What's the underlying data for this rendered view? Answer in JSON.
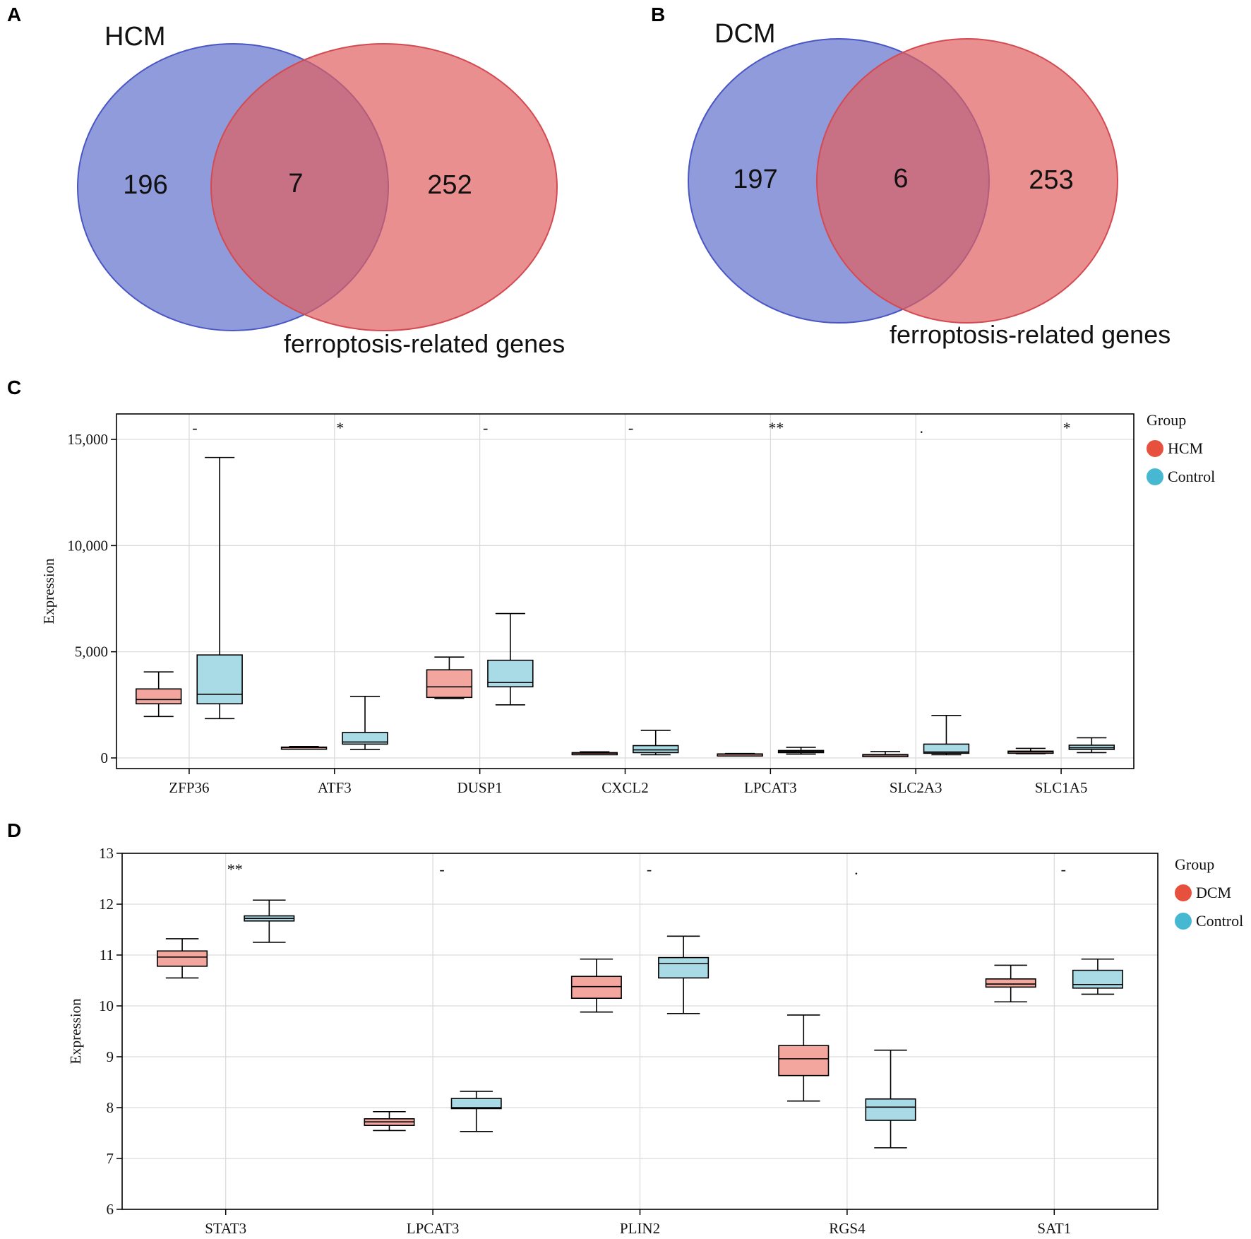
{
  "colors": {
    "venn_left": "#6f7fcf",
    "venn_left_stroke": "#4a56c4",
    "venn_right": "#e06060",
    "venn_right_stroke": "#d44a52",
    "box_disease": "#f2a69e",
    "box_control": "#a8dbe6",
    "legend_disease": "#e8503e",
    "legend_control": "#47b8d1",
    "grid": "#d9d9d9"
  },
  "panels": {
    "a": {
      "letter": "A"
    },
    "b": {
      "letter": "B"
    },
    "c": {
      "letter": "C"
    },
    "d": {
      "letter": "D"
    }
  },
  "venn_a": {
    "set_left": "HCM",
    "set_right": "ferroptosis-related genes",
    "left_only": "196",
    "overlap": "7",
    "right_only": "252"
  },
  "venn_b": {
    "set_left": "DCM",
    "set_right": "ferroptosis-related genes",
    "left_only": "197",
    "overlap": "6",
    "right_only": "253"
  },
  "chart_data": [
    {
      "panel": "C",
      "type": "boxplot",
      "ylabel": "Expression",
      "ylim": [
        -500,
        16200
      ],
      "yticks": [
        0,
        5000,
        10000,
        15000
      ],
      "ytick_labels": [
        "0",
        "5,000",
        "10,000",
        "15,000"
      ],
      "categories": [
        "ZFP36",
        "ATF3",
        "DUSP1",
        "CXCL2",
        "LPCAT3",
        "SLC2A3",
        "SLC1A5"
      ],
      "significance": [
        "-",
        "*",
        "-",
        "-",
        "**",
        ".",
        "*"
      ],
      "legend": {
        "title": "Group",
        "entries": [
          "HCM",
          "Control"
        ]
      },
      "series": [
        {
          "name": "HCM",
          "boxes": [
            {
              "min": 1950,
              "q1": 2550,
              "median": 2750,
              "q3": 3250,
              "max": 4050
            },
            {
              "min": 430,
              "q1": 470,
              "median": 490,
              "q3": 510,
              "max": 540
            },
            {
              "min": 2800,
              "q1": 2850,
              "median": 3350,
              "q3": 4150,
              "max": 4750
            },
            {
              "min": 180,
              "q1": 210,
              "median": 230,
              "q3": 250,
              "max": 290
            },
            {
              "min": 150,
              "q1": 170,
              "median": 180,
              "q3": 190,
              "max": 210
            },
            {
              "min": 100,
              "q1": 120,
              "median": 140,
              "q3": 160,
              "max": 300
            },
            {
              "min": 200,
              "q1": 250,
              "median": 290,
              "q3": 320,
              "max": 450
            }
          ]
        },
        {
          "name": "Control",
          "boxes": [
            {
              "min": 1850,
              "q1": 2550,
              "median": 3000,
              "q3": 4850,
              "max": 14150
            },
            {
              "min": 400,
              "q1": 650,
              "median": 750,
              "q3": 1200,
              "max": 2900
            },
            {
              "min": 2500,
              "q1": 3350,
              "median": 3550,
              "q3": 4600,
              "max": 6800
            },
            {
              "min": 150,
              "q1": 250,
              "median": 380,
              "q3": 580,
              "max": 1300
            },
            {
              "min": 180,
              "q1": 250,
              "median": 300,
              "q3": 350,
              "max": 500
            },
            {
              "min": 150,
              "q1": 220,
              "median": 280,
              "q3": 650,
              "max": 2000
            },
            {
              "min": 250,
              "q1": 400,
              "median": 480,
              "q3": 600,
              "max": 950
            }
          ]
        }
      ]
    },
    {
      "panel": "D",
      "type": "boxplot",
      "ylabel": "Expression",
      "ylim": [
        6,
        13
      ],
      "yticks": [
        6,
        7,
        8,
        9,
        10,
        11,
        12,
        13
      ],
      "ytick_labels": [
        "6",
        "7",
        "8",
        "9",
        "10",
        "11",
        "12",
        "13"
      ],
      "categories": [
        "STAT3",
        "LPCAT3",
        "PLIN2",
        "RGS4",
        "SAT1"
      ],
      "significance": [
        "**",
        "-",
        "-",
        ".",
        "-"
      ],
      "legend": {
        "title": "Group",
        "entries": [
          "DCM",
          "Control"
        ]
      },
      "series": [
        {
          "name": "DCM",
          "boxes": [
            {
              "min": 10.55,
              "q1": 10.78,
              "median": 10.96,
              "q3": 11.08,
              "max": 11.32
            },
            {
              "min": 7.55,
              "q1": 7.65,
              "median": 7.72,
              "q3": 7.78,
              "max": 7.92
            },
            {
              "min": 9.88,
              "q1": 10.15,
              "median": 10.38,
              "q3": 10.58,
              "max": 10.92
            },
            {
              "min": 8.13,
              "q1": 8.63,
              "median": 8.96,
              "q3": 9.22,
              "max": 9.82
            },
            {
              "min": 10.08,
              "q1": 10.37,
              "median": 10.43,
              "q3": 10.53,
              "max": 10.8
            }
          ]
        },
        {
          "name": "Control",
          "boxes": [
            {
              "min": 11.25,
              "q1": 11.67,
              "median": 11.72,
              "q3": 11.77,
              "max": 12.08
            },
            {
              "min": 7.53,
              "q1": 7.98,
              "median": 8.0,
              "q3": 8.18,
              "max": 8.32
            },
            {
              "min": 9.85,
              "q1": 10.55,
              "median": 10.83,
              "q3": 10.95,
              "max": 11.37
            },
            {
              "min": 7.21,
              "q1": 7.75,
              "median": 8.01,
              "q3": 8.17,
              "max": 9.13
            },
            {
              "min": 10.23,
              "q1": 10.35,
              "median": 10.42,
              "q3": 10.7,
              "max": 10.92
            }
          ]
        }
      ]
    }
  ]
}
